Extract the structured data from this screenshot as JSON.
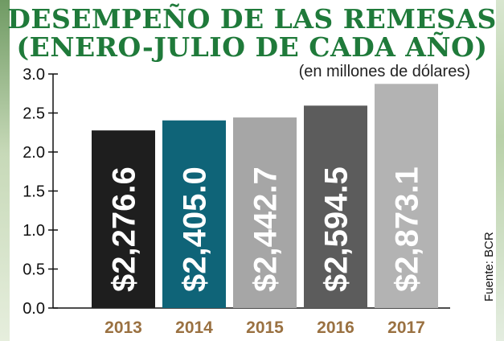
{
  "header": {
    "title_line1": "DESEMPEÑO DE LAS REMESAS",
    "title_line2": "(ENERO-JULIO DE CADA AÑO)",
    "unit": "(en millones de dólares)"
  },
  "source": "Fuente: BCR",
  "chart_data": {
    "type": "bar",
    "categories": [
      "2013",
      "2014",
      "2015",
      "2016",
      "2017"
    ],
    "values": [
      2276.6,
      2405.0,
      2442.7,
      2594.5,
      2873.1
    ],
    "data_labels": [
      "$2,276.6",
      "$2,405.0",
      "$2,442.7",
      "$2,594.5",
      "$2,873.1"
    ],
    "y_ticks": [
      "0.0",
      "0.5",
      "1.0",
      "1.5",
      "2.0",
      "2.5",
      "3.0"
    ],
    "ylim": [
      0,
      3000
    ],
    "grid": false,
    "bar_colors": [
      "#1e1e1e",
      "#0f6478",
      "#a6a6a6",
      "#5c5c5c",
      "#b3b3b3"
    ],
    "xlabel_color": "#9a7141"
  }
}
